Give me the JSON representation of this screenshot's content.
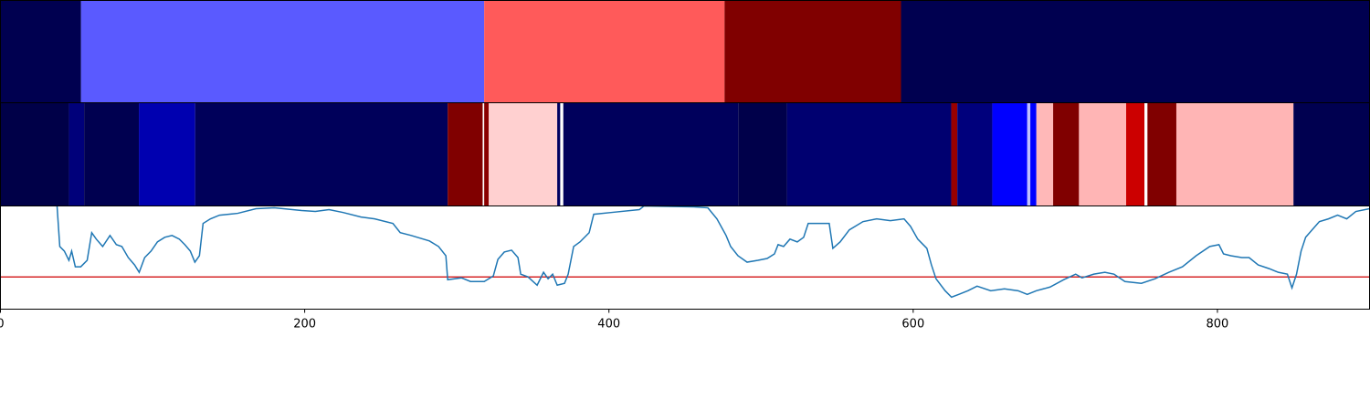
{
  "chart_data": [
    {
      "type": "segments",
      "xlim": [
        0,
        900
      ],
      "segments": [
        {
          "start": 0,
          "end": 53,
          "color": "#000050"
        },
        {
          "start": 53,
          "end": 318,
          "color": "#5a5aff"
        },
        {
          "start": 318,
          "end": 476,
          "color": "#ff5a5a"
        },
        {
          "start": 476,
          "end": 592,
          "color": "#800000"
        },
        {
          "start": 592,
          "end": 900,
          "color": "#000050"
        }
      ]
    },
    {
      "type": "segments",
      "xlim": [
        0,
        900
      ],
      "segments": [
        {
          "start": 0,
          "end": 45,
          "color": "#000048"
        },
        {
          "start": 45,
          "end": 55,
          "color": "#00007a"
        },
        {
          "start": 55,
          "end": 91,
          "color": "#000050"
        },
        {
          "start": 91,
          "end": 128,
          "color": "#0000b0"
        },
        {
          "start": 128,
          "end": 294,
          "color": "#00005a"
        },
        {
          "start": 294,
          "end": 317,
          "color": "#800000"
        },
        {
          "start": 317,
          "end": 318,
          "color": "#ffffff"
        },
        {
          "start": 318,
          "end": 321,
          "color": "#8a0000"
        },
        {
          "start": 321,
          "end": 366,
          "color": "#ffd0d0"
        },
        {
          "start": 366,
          "end": 368,
          "color": "#000060"
        },
        {
          "start": 368,
          "end": 370,
          "color": "#ffffff"
        },
        {
          "start": 370,
          "end": 485,
          "color": "#00005c"
        },
        {
          "start": 485,
          "end": 517,
          "color": "#00004a"
        },
        {
          "start": 517,
          "end": 625,
          "color": "#000070"
        },
        {
          "start": 625,
          "end": 629,
          "color": "#990000"
        },
        {
          "start": 629,
          "end": 652,
          "color": "#00007c"
        },
        {
          "start": 652,
          "end": 675,
          "color": "#0000ff"
        },
        {
          "start": 675,
          "end": 677,
          "color": "#c0c0ff"
        },
        {
          "start": 677,
          "end": 681,
          "color": "#0000ff"
        },
        {
          "start": 681,
          "end": 692,
          "color": "#ffb8b8"
        },
        {
          "start": 692,
          "end": 709,
          "color": "#800000"
        },
        {
          "start": 709,
          "end": 740,
          "color": "#ffb5b5"
        },
        {
          "start": 740,
          "end": 752,
          "color": "#cc0000"
        },
        {
          "start": 752,
          "end": 754,
          "color": "#ffffff"
        },
        {
          "start": 754,
          "end": 773,
          "color": "#800000"
        },
        {
          "start": 773,
          "end": 850,
          "color": "#ffb5b5"
        },
        {
          "start": 850,
          "end": 900,
          "color": "#000050"
        }
      ]
    },
    {
      "type": "line",
      "xlim": [
        0,
        900
      ],
      "ylim": [
        0,
        112
      ],
      "xticks": [
        0,
        200,
        400,
        600,
        800
      ],
      "color": "#1f77b4",
      "hline": {
        "value": 35,
        "color": "#d62728"
      },
      "x": [
        37.2,
        39,
        42,
        45,
        46.8,
        49.2,
        52.8,
        57,
        60,
        63,
        67.2,
        72,
        76.2,
        79.8,
        84,
        88.2,
        91.2,
        94.8,
        99,
        103.2,
        108,
        112.8,
        117.6,
        121.2,
        124.8,
        127.8,
        130.8,
        133.2,
        138,
        144,
        156,
        168,
        180,
        192,
        198,
        207,
        216,
        225,
        237,
        246,
        258,
        262.8,
        270,
        282,
        288,
        292.8,
        294,
        303,
        309,
        318,
        324,
        327,
        331.2,
        336,
        340.2,
        342,
        346.8,
        352.8,
        357,
        360,
        363,
        366,
        370.8,
        373.2,
        376.8,
        381,
        387,
        390,
        402,
        420,
        423,
        456,
        465,
        471,
        477,
        480,
        484.8,
        490.8,
        498,
        504,
        508.8,
        511.2,
        514.8,
        519,
        523.8,
        528,
        531,
        540,
        544.8,
        547.2,
        552,
        558,
        567,
        576,
        585,
        594,
        598.2,
        603,
        609,
        612,
        615,
        621,
        625.2,
        630,
        636,
        642,
        651,
        660,
        669,
        675,
        681,
        690,
        699,
        706.8,
        711,
        718.8,
        726,
        732,
        739.2,
        750,
        759,
        768,
        777,
        786,
        795,
        801,
        804,
        808.8,
        816,
        820.8,
        826.8,
        834,
        840,
        846,
        849,
        852,
        855,
        858,
        862.2,
        867,
        873,
        879,
        885,
        891,
        900
      ],
      "values": [
        112,
        68,
        63,
        53,
        63,
        46,
        46,
        53,
        83,
        76,
        68,
        80,
        70,
        68,
        56,
        48,
        40,
        56,
        63,
        73,
        78,
        80,
        76,
        70,
        63,
        51,
        58,
        93,
        98,
        102,
        104,
        109,
        110,
        108,
        107,
        106,
        108,
        105,
        100,
        98,
        93,
        83,
        80,
        74,
        68,
        58,
        32,
        34,
        30,
        30,
        36,
        54,
        62,
        64,
        56,
        38,
        35,
        26,
        40,
        33,
        38,
        26,
        28,
        38,
        68,
        73,
        83,
        103,
        105,
        108,
        112,
        111,
        110,
        98,
        80,
        68,
        58,
        51,
        53,
        55,
        60,
        70,
        68,
        76,
        73,
        78,
        93,
        93,
        93,
        66,
        73,
        86,
        95,
        98,
        96,
        98,
        90,
        76,
        66,
        48,
        33,
        20,
        13,
        16,
        20,
        25,
        20,
        22,
        20,
        16,
        20,
        24,
        32,
        38,
        34,
        38,
        40,
        38,
        30,
        28,
        33,
        40,
        46,
        58,
        68,
        70,
        60,
        58,
        56,
        56,
        48,
        44,
        40,
        38,
        23,
        38,
        63,
        78,
        86,
        95,
        98,
        102,
        98,
        106,
        109
      ]
    }
  ]
}
